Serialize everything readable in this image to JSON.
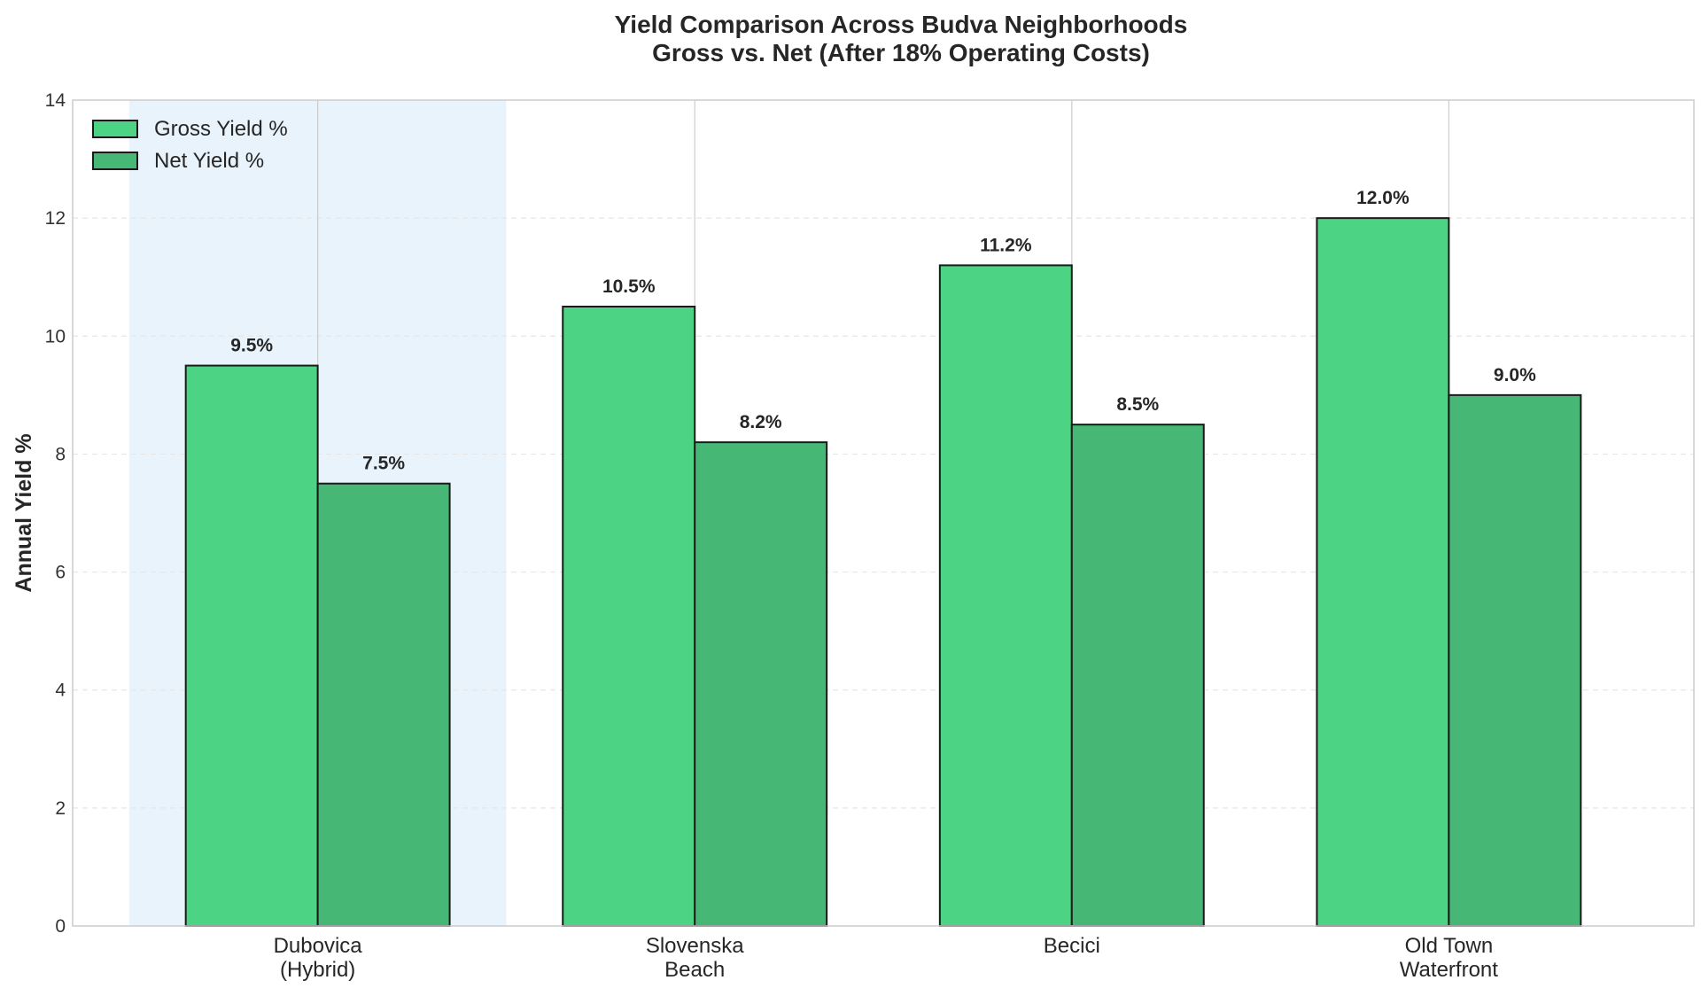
{
  "chart_data": {
    "type": "bar",
    "title": "Yield Comparison Across Budva Neighborhoods",
    "subtitle": "Gross vs. Net (After 18% Operating Costs)",
    "ylabel": "Annual Yield %",
    "xlabel": "",
    "categories": [
      [
        "Dubovica",
        "(Hybrid)"
      ],
      [
        "Slovenska",
        "Beach"
      ],
      [
        "Becici"
      ],
      [
        "Old Town",
        "Waterfront"
      ]
    ],
    "series": [
      {
        "name": "Gross Yield %",
        "color": "#4cd384",
        "values": [
          9.5,
          10.5,
          11.2,
          12.0
        ],
        "labels": [
          "9.5%",
          "10.5%",
          "11.2%",
          "12.0%"
        ]
      },
      {
        "name": "Net Yield %",
        "color": "#47b776",
        "values": [
          7.5,
          8.2,
          8.5,
          9.0
        ],
        "labels": [
          "7.5%",
          "8.2%",
          "8.5%",
          "9.0%"
        ]
      }
    ],
    "highlight_category_index": 0,
    "highlight_color": "#e8f3fb",
    "ylim": [
      0,
      14
    ],
    "yticks": [
      "0",
      "2",
      "4",
      "6",
      "8",
      "10",
      "12",
      "14"
    ],
    "grid": true,
    "legend_position": "top-left",
    "bar_edge_color": "#1a1a1a"
  }
}
